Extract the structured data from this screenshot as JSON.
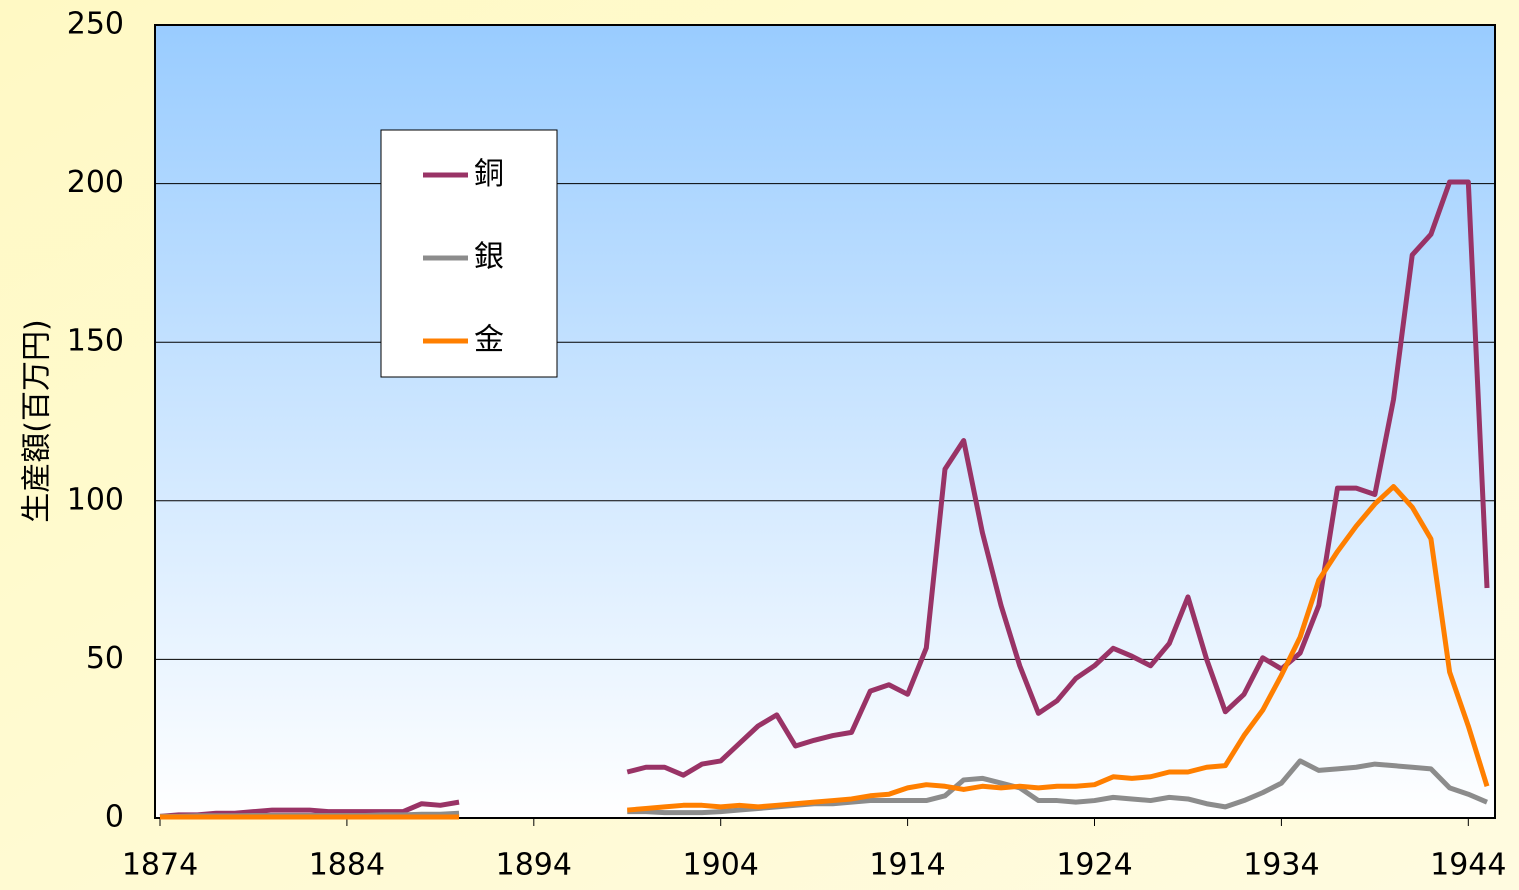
{
  "chart_data": {
    "type": "line",
    "y_label": "生産額(百万円)",
    "x": [
      1874,
      1875,
      1876,
      1877,
      1878,
      1879,
      1880,
      1881,
      1882,
      1883,
      1884,
      1885,
      1886,
      1887,
      1888,
      1889,
      1890,
      1891,
      1892,
      1893,
      1894,
      1895,
      1896,
      1897,
      1898,
      1899,
      1900,
      1901,
      1902,
      1903,
      1904,
      1905,
      1906,
      1907,
      1908,
      1909,
      1910,
      1911,
      1912,
      1913,
      1914,
      1915,
      1916,
      1917,
      1918,
      1919,
      1920,
      1921,
      1922,
      1923,
      1924,
      1925,
      1926,
      1927,
      1928,
      1929,
      1930,
      1931,
      1932,
      1933,
      1934,
      1935,
      1936,
      1937,
      1938,
      1939,
      1940,
      1941,
      1942,
      1943,
      1944,
      1945
    ],
    "series": [
      {
        "name": "銅",
        "color": "#993366",
        "values": [
          0.5,
          1,
          1,
          1.5,
          1.5,
          2,
          2.5,
          2.5,
          2.5,
          2,
          2,
          2,
          2,
          2,
          4.5,
          4,
          5,
          null,
          null,
          null,
          null,
          null,
          null,
          null,
          null,
          14.5,
          16,
          16,
          13.5,
          17,
          18,
          23.5,
          29,
          32.5,
          22.7,
          24.5,
          26,
          27,
          40,
          42,
          39,
          53.6,
          110,
          119,
          90,
          67,
          48,
          33,
          37,
          44,
          48,
          53.5,
          51,
          48,
          55,
          69.7,
          50,
          33.5,
          39,
          50.5,
          47,
          52,
          67,
          104,
          104,
          102,
          132,
          177.5,
          184,
          200.5,
          200.5,
          72.5
        ]
      },
      {
        "name": "銀",
        "color": "#8c8c8c",
        "values": [
          0.5,
          0.5,
          0.7,
          0.7,
          0.7,
          0.8,
          0.8,
          0.8,
          0.8,
          0.8,
          0.8,
          0.8,
          1,
          1,
          1.2,
          1.2,
          1.5,
          null,
          null,
          null,
          null,
          null,
          null,
          null,
          null,
          2,
          2,
          1.7,
          1.7,
          1.7,
          2,
          2.5,
          3,
          3.5,
          4,
          4.5,
          4.5,
          5,
          5.5,
          5.5,
          5.5,
          5.5,
          7,
          12,
          12.5,
          11,
          9.5,
          5.5,
          5.5,
          5,
          5.5,
          6.5,
          6,
          5.5,
          6.5,
          6,
          4.5,
          3.5,
          5.5,
          8,
          11,
          18,
          15,
          15.5,
          16,
          17,
          16.5,
          16,
          15.5,
          9.5,
          7.5,
          5
        ]
      },
      {
        "name": "金",
        "color": "#ff7f00",
        "values": [
          0.3,
          0.3,
          0.3,
          0.3,
          0.3,
          0.3,
          0.3,
          0.3,
          0.3,
          0.3,
          0.3,
          0.3,
          0.3,
          0.3,
          0.3,
          0.3,
          0.3,
          null,
          null,
          null,
          null,
          null,
          null,
          null,
          null,
          2.5,
          3,
          3.5,
          4,
          4,
          3.5,
          4,
          3.5,
          4,
          4.5,
          5,
          5.5,
          6,
          7,
          7.5,
          9.5,
          10.5,
          10,
          9,
          10,
          9.5,
          10,
          9.5,
          10,
          10,
          10.5,
          13,
          12.5,
          13,
          14.5,
          14.5,
          16,
          16.5,
          26,
          34,
          45,
          57,
          75,
          84,
          92,
          99,
          104.5,
          98,
          88,
          46,
          29,
          10
        ]
      }
    ],
    "xlim": [
      1874,
      1945
    ],
    "xticks": [
      1874,
      1884,
      1894,
      1904,
      1914,
      1924,
      1934,
      1944
    ],
    "ylim": [
      0,
      250
    ],
    "yticks": [
      0,
      50,
      100,
      150,
      200,
      250
    ],
    "grid": true
  }
}
